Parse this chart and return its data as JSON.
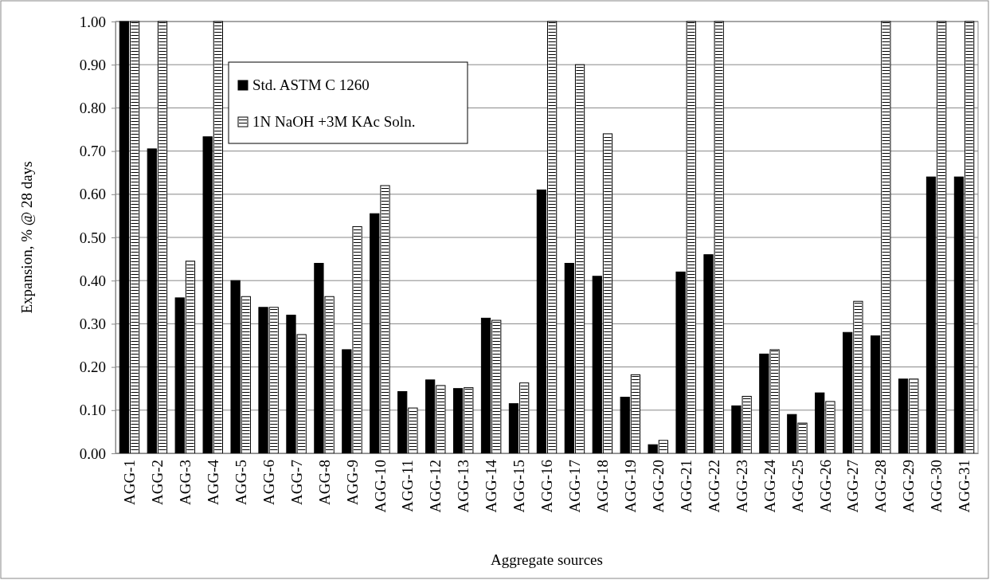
{
  "chart_data": {
    "type": "bar",
    "xlabel": "Aggregate sources",
    "ylabel": "Expansion, % @ 28 days",
    "categories": [
      "AGG-1",
      "AGG-2",
      "AGG-3",
      "AGG-4",
      "AGG-5",
      "AGG-6",
      "AGG-7",
      "AGG-8",
      "AGG-9",
      "AGG-10",
      "AGG-11",
      "AGG-12",
      "AGG-13",
      "AGG-14",
      "AGG-15",
      "AGG-16",
      "AGG-17",
      "AGG-18",
      "AGG-19",
      "AGG-20",
      "AGG-21",
      "AGG-22",
      "AGG-23",
      "AGG-24",
      "AGG-25",
      "AGG-26",
      "AGG-27",
      "AGG-28",
      "AGG-29",
      "AGG-30",
      "AGG-31"
    ],
    "series": [
      {
        "name": "Std. ASTM C 1260",
        "color": "#000000",
        "values": [
          1.0,
          0.705,
          0.36,
          0.733,
          0.4,
          0.338,
          0.32,
          0.44,
          0.24,
          0.555,
          0.143,
          0.17,
          0.15,
          0.313,
          0.115,
          0.61,
          0.44,
          0.41,
          0.13,
          0.02,
          0.42,
          0.46,
          0.11,
          0.23,
          0.09,
          0.14,
          0.28,
          0.272,
          0.172,
          0.64,
          0.64
        ]
      },
      {
        "name": "1N NaOH +3M KAc Soln.",
        "color": "#ffffff",
        "values": [
          1.0,
          1.0,
          0.445,
          1.0,
          0.363,
          0.338,
          0.275,
          0.363,
          0.525,
          0.62,
          0.105,
          0.157,
          0.152,
          0.308,
          0.163,
          1.0,
          0.9,
          0.74,
          0.182,
          0.03,
          1.0,
          1.0,
          0.132,
          0.24,
          0.07,
          0.12,
          0.352,
          1.0,
          0.172,
          1.0,
          1.0
        ]
      }
    ],
    "ylim": [
      0,
      1
    ],
    "yticks": [
      {
        "value": 0,
        "label": "0.00"
      },
      {
        "value": 0.1,
        "label": "0.10"
      },
      {
        "value": 0.2,
        "label": "0.20"
      },
      {
        "value": 0.3,
        "label": "0.30"
      },
      {
        "value": 0.4,
        "label": "0.40"
      },
      {
        "value": 0.5,
        "label": "0.50"
      },
      {
        "value": 0.6,
        "label": "0.60"
      },
      {
        "value": 0.7,
        "label": "0.70"
      },
      {
        "value": 0.8,
        "label": "0.80"
      },
      {
        "value": 0.9,
        "label": "0.90"
      },
      {
        "value": 1,
        "label": "1.00"
      }
    ],
    "grid": "y",
    "legend": "top left"
  }
}
